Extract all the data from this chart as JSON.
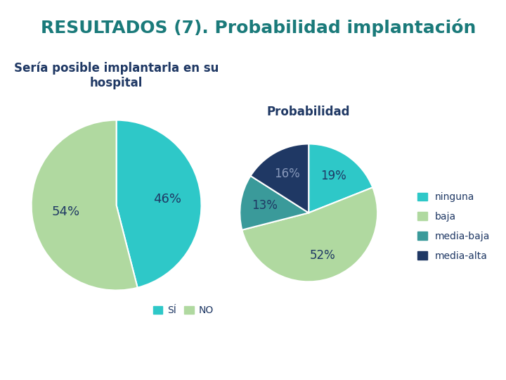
{
  "title": "RESULTADOS (7). Probabilidad implantación",
  "title_color": "#1a7a7a",
  "title_fontsize": 18,
  "title_fontweight": "bold",
  "pie1_title": "Sería posible implantarla en su\nhospital",
  "pie1_title_color": "#1f3864",
  "pie1_values": [
    46,
    54
  ],
  "pie1_labels": [
    "46%",
    "54%"
  ],
  "pie1_label_colors": [
    "#1f3864",
    "#1f3864"
  ],
  "pie1_colors": [
    "#2ec8c8",
    "#b0d9a0"
  ],
  "pie1_legend_labels": [
    "SÍ",
    "NO"
  ],
  "pie2_title": "Probabilidad",
  "pie2_title_color": "#1f3864",
  "pie2_values": [
    19,
    52,
    13,
    16
  ],
  "pie2_labels": [
    "19%",
    "52%",
    "13%",
    "16%"
  ],
  "pie2_label_colors": [
    "#1f3864",
    "#1f3864",
    "#1f3864",
    "#8899aa"
  ],
  "pie2_colors": [
    "#2ec8c8",
    "#b0d9a0",
    "#3a9a9a",
    "#1f3864"
  ],
  "pie2_legend_labels": [
    "ninguna",
    "baja",
    "media-baja",
    "media-alta"
  ],
  "background_color": "#ffffff",
  "label_fontsize": 12,
  "subtitle_fontsize": 12
}
